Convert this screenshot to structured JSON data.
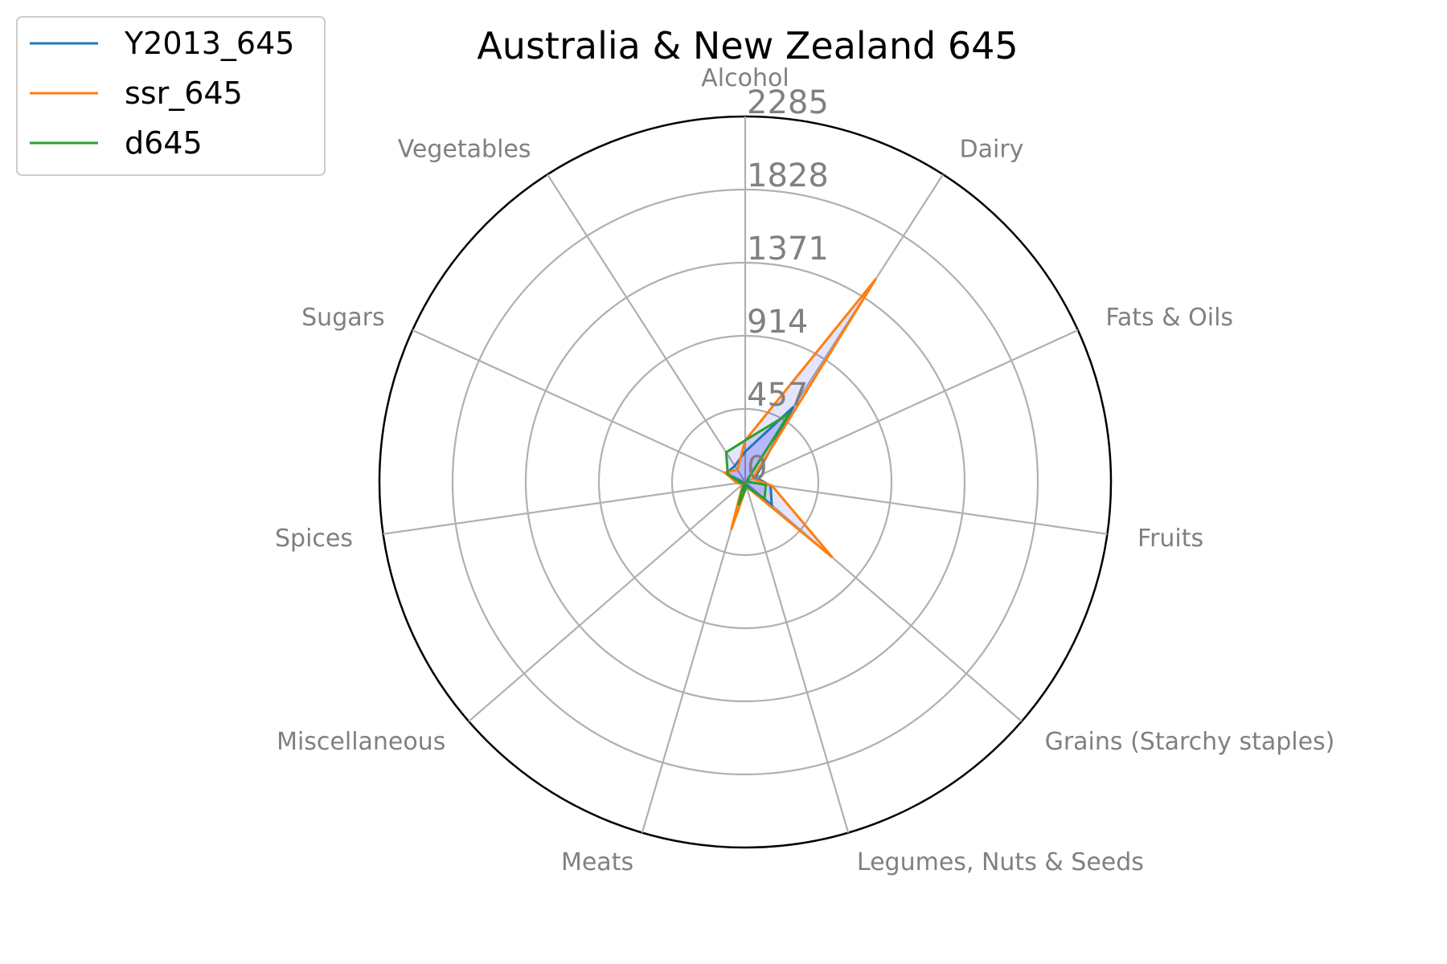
{
  "chart_data": {
    "type": "radar",
    "title": "Australia & New Zealand 645",
    "categories": [
      "Alcohol",
      "Dairy",
      "Fats & Oils",
      "Fruits",
      "Grains (Starchy staples)",
      "Legumes, Nuts & Seeds",
      "Meats",
      "Miscellaneous",
      "Spices",
      "Sugars",
      "Vegetables"
    ],
    "rlim": [
      0,
      2285
    ],
    "rticks": [
      0,
      457,
      914,
      1371,
      1828,
      2285
    ],
    "grid": true,
    "legend_position": "top-left",
    "series": [
      {
        "name": "Y2013_645",
        "color": "#1f77b4",
        "values": [
          190,
          560,
          70,
          160,
          220,
          20,
          170,
          10,
          20,
          130,
          120
        ]
      },
      {
        "name": "ssr_645",
        "color": "#ff7f0e",
        "values": [
          260,
          1510,
          50,
          170,
          720,
          30,
          310,
          20,
          50,
          140,
          90
        ]
      },
      {
        "name": "d645",
        "color": "#2ca02c",
        "values": [
          260,
          510,
          10,
          130,
          160,
          30,
          150,
          10,
          30,
          120,
          220
        ]
      }
    ],
    "fill": {
      "color": "#0000ff",
      "opacity": 0.1
    }
  }
}
